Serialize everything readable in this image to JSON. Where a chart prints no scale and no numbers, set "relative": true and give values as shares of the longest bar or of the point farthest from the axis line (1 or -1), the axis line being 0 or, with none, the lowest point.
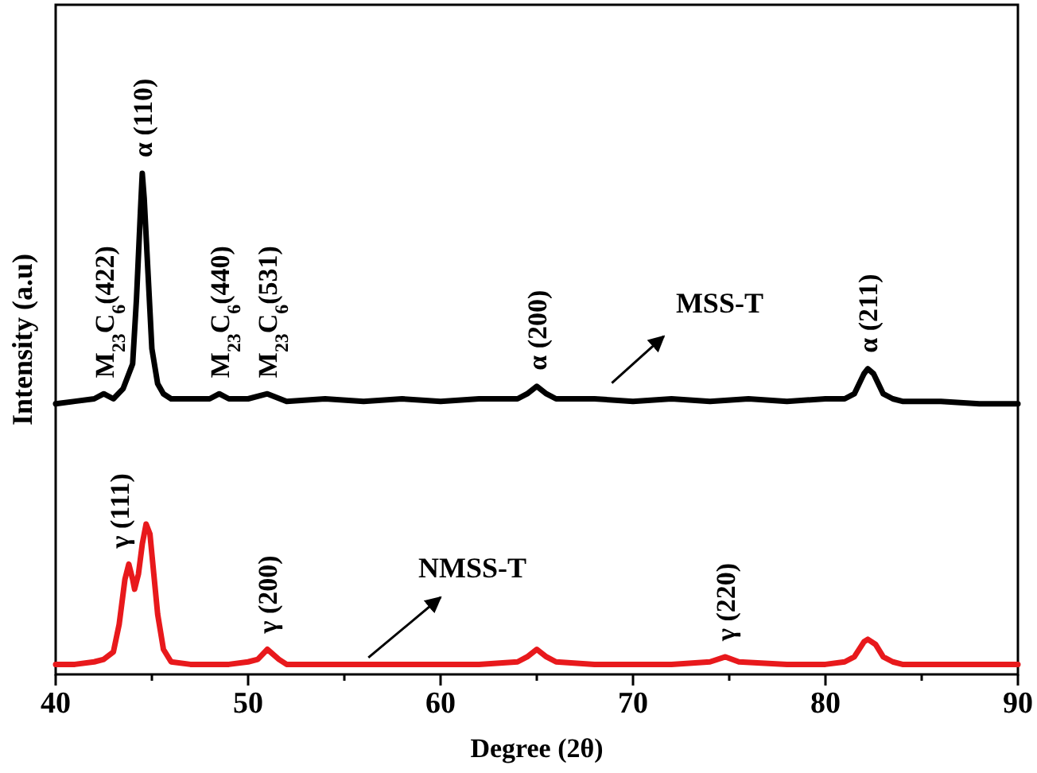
{
  "chart_data": {
    "type": "line",
    "relative": true,
    "xlabel": "Degree (2θ)",
    "ylabel": "Intensity (a.u)",
    "xlim": [
      40,
      90
    ],
    "xticks": [
      40,
      {
        "value": 45,
        "label": null
      },
      50,
      {
        "value": 55,
        "label": null
      },
      60,
      {
        "value": 65,
        "label": null
      },
      70,
      {
        "value": 75,
        "label": null
      },
      80,
      {
        "value": 85,
        "label": null
      },
      90
    ],
    "legend": false,
    "grid": false,
    "marker": "none",
    "line_style": "solid",
    "series": [
      {
        "name": "MSS-T",
        "color": "#000000",
        "x": [
          40,
          41,
          42,
          42.5,
          43,
          43.5,
          44,
          44.2,
          44.4,
          44.5,
          44.6,
          44.8,
          45,
          45.3,
          45.6,
          46,
          47,
          48,
          48.5,
          49,
          50,
          51,
          52,
          54,
          56,
          58,
          60,
          62,
          64,
          64.5,
          65,
          65.5,
          66,
          68,
          70,
          72,
          74,
          76,
          78,
          80,
          81,
          81.5,
          82,
          82.2,
          82.5,
          83,
          83.5,
          84,
          86,
          88,
          90
        ],
        "values": [
          0.54,
          0.545,
          0.55,
          0.56,
          0.55,
          0.57,
          0.62,
          0.75,
          0.92,
          1.0,
          0.95,
          0.8,
          0.65,
          0.58,
          0.56,
          0.55,
          0.55,
          0.55,
          0.56,
          0.55,
          0.55,
          0.56,
          0.545,
          0.55,
          0.545,
          0.55,
          0.545,
          0.55,
          0.55,
          0.56,
          0.575,
          0.56,
          0.55,
          0.55,
          0.545,
          0.55,
          0.545,
          0.55,
          0.545,
          0.55,
          0.55,
          0.56,
          0.6,
          0.61,
          0.6,
          0.56,
          0.55,
          0.545,
          0.545,
          0.54,
          0.54
        ]
      },
      {
        "name": "NMSS-T",
        "color": "#e8191c",
        "x": [
          40,
          41,
          42,
          42.5,
          43,
          43.3,
          43.6,
          43.8,
          44,
          44.1,
          44.3,
          44.5,
          44.7,
          44.9,
          45.1,
          45.3,
          45.6,
          46,
          47,
          48,
          49,
          50,
          50.5,
          51,
          51.6,
          52,
          54,
          56,
          58,
          60,
          62,
          64,
          64.5,
          65,
          65.5,
          66,
          68,
          70,
          72,
          74,
          74.8,
          75.5,
          78,
          80,
          81,
          81.5,
          82,
          82.2,
          82.6,
          83,
          83.5,
          84,
          86,
          88,
          90
        ],
        "values": [
          0.02,
          0.02,
          0.025,
          0.03,
          0.045,
          0.1,
          0.19,
          0.22,
          0.19,
          0.17,
          0.2,
          0.26,
          0.3,
          0.28,
          0.2,
          0.12,
          0.05,
          0.025,
          0.02,
          0.02,
          0.02,
          0.025,
          0.03,
          0.05,
          0.03,
          0.02,
          0.02,
          0.02,
          0.02,
          0.02,
          0.02,
          0.025,
          0.035,
          0.05,
          0.035,
          0.025,
          0.02,
          0.02,
          0.02,
          0.025,
          0.035,
          0.025,
          0.02,
          0.02,
          0.025,
          0.035,
          0.065,
          0.07,
          0.06,
          0.035,
          0.025,
          0.02,
          0.02,
          0.02,
          0.02
        ]
      }
    ],
    "annotations": [
      {
        "text": "M$_{23}$C$_{6}$(422)",
        "x": 42.5,
        "y": 0.56
      },
      {
        "text": "α (110)",
        "x": 44.5,
        "y": 1.0
      },
      {
        "text": "M$_{23}$C$_{6}$(440)",
        "x": 48.5,
        "y": 0.56
      },
      {
        "text": "M$_{23}$C$_{6}$(531)",
        "x": 51,
        "y": 0.56
      },
      {
        "text": "α (200)",
        "x": 65,
        "y": 0.575
      },
      {
        "text": "α (211)",
        "x": 82.2,
        "y": 0.61
      },
      {
        "text": "γ (111)",
        "x": 43.3,
        "y": 0.22
      },
      {
        "text": "γ (200)",
        "x": 51,
        "y": 0.05
      },
      {
        "text": "γ (220)",
        "x": 74.8,
        "y": 0.035
      }
    ]
  }
}
